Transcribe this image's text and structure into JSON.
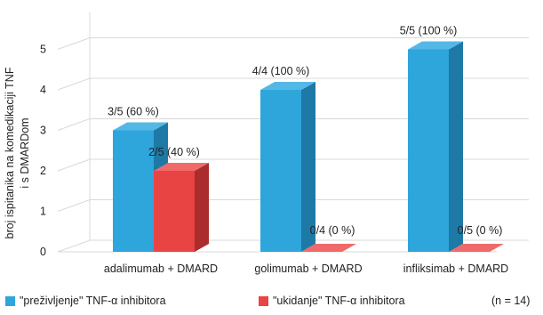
{
  "chart_data": {
    "type": "bar",
    "categories": [
      "adalimumab + DMARD",
      "golimumab + DMARD",
      "infliksimab + DMARD"
    ],
    "series": [
      {
        "name": "\"preživljenje\" TNF-α inhibitora",
        "color": "#2ea6dc",
        "side_color": "#1e79a6",
        "top_color": "#54b8e6",
        "values": [
          3,
          4,
          5
        ],
        "data_labels": [
          "3/5 (60 %)",
          "4/4 (100 %)",
          "5/5 (100 %)"
        ]
      },
      {
        "name": "\"ukidanje\" TNF-α inhibitora",
        "color": "#e84444",
        "side_color": "#ab2c2c",
        "top_color": "#f06a6a",
        "values": [
          2,
          0,
          0
        ],
        "data_labels": [
          "2/5 (40 %)",
          "0/4 (0 %)",
          "0/5 (0 %)"
        ]
      }
    ],
    "ylabel_lines": [
      "broj ispitanika na komedikaciji TNF",
      "i s DMARDom"
    ],
    "yticks": [
      "0",
      "1",
      "2",
      "3",
      "4",
      "5"
    ],
    "ylim": [
      0,
      5.5
    ],
    "grid": true,
    "legend_position": "bottom",
    "note": "(n = 14)"
  }
}
